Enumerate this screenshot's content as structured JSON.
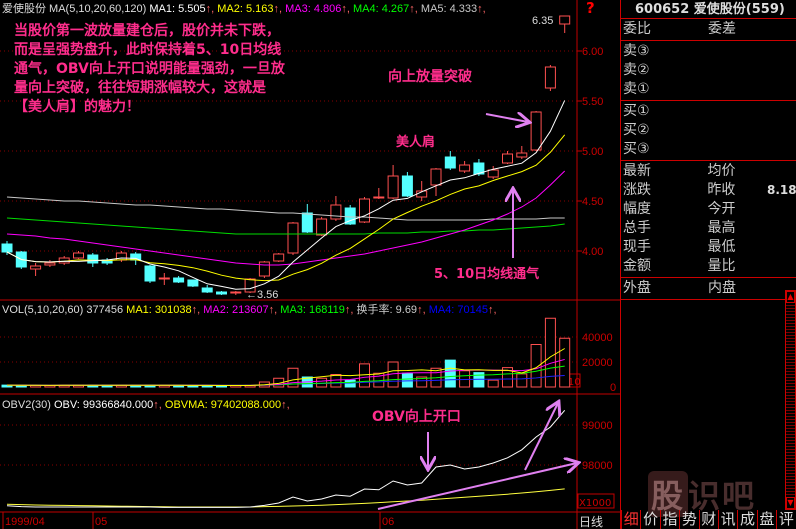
{
  "chart_data": {
    "type": "candlestick",
    "stock_name": "爱使股份",
    "price_panel": {
      "legend": {
        "label": "MA(5,10,20,60,120)",
        "items": [
          {
            "name": "MA1",
            "value": "5.505",
            "color": "#ffffff"
          },
          {
            "name": "MA2",
            "value": "5.163",
            "color": "#ffff00"
          },
          {
            "name": "MA3",
            "value": "4.806",
            "color": "#ff00ff"
          },
          {
            "name": "MA4",
            "value": "4.267",
            "color": "#00ff00"
          },
          {
            "name": "MA5",
            "value": "4.333",
            "color": "#c8c8c8"
          }
        ]
      },
      "y_ticks": [
        "6.00",
        "5.50",
        "5.00",
        "4.50",
        "4.00"
      ],
      "ylim": [
        3.5,
        6.5
      ],
      "high_label": "6.35",
      "low_label": "3.56",
      "candles": [
        [
          4.07,
          3.99,
          4.1,
          3.96
        ],
        [
          3.99,
          3.84,
          4.0,
          3.82
        ],
        [
          3.82,
          3.85,
          3.88,
          3.75
        ],
        [
          3.86,
          3.88,
          3.91,
          3.84
        ],
        [
          3.88,
          3.93,
          3.95,
          3.86
        ],
        [
          3.93,
          3.98,
          4.0,
          3.92
        ],
        [
          3.96,
          3.88,
          3.98,
          3.84
        ],
        [
          3.91,
          3.88,
          3.93,
          3.86
        ],
        [
          3.91,
          3.98,
          4.0,
          3.89
        ],
        [
          3.97,
          3.91,
          3.99,
          3.86
        ],
        [
          3.85,
          3.7,
          3.86,
          3.68
        ],
        [
          3.73,
          3.73,
          3.78,
          3.66
        ],
        [
          3.73,
          3.69,
          3.75,
          3.68
        ],
        [
          3.71,
          3.65,
          3.71,
          3.64
        ],
        [
          3.63,
          3.59,
          3.66,
          3.58
        ],
        [
          3.59,
          3.57,
          3.6,
          3.56
        ],
        [
          3.58,
          3.59,
          3.6,
          3.56
        ],
        [
          3.59,
          3.72,
          3.73,
          3.58
        ],
        [
          3.75,
          3.89,
          3.9,
          3.73
        ],
        [
          3.9,
          3.97,
          3.98,
          3.89
        ],
        [
          3.98,
          4.28,
          4.29,
          3.96
        ],
        [
          4.38,
          4.19,
          4.47,
          4.18
        ],
        [
          4.16,
          4.32,
          4.34,
          4.15
        ],
        [
          4.32,
          4.46,
          4.55,
          4.3
        ],
        [
          4.43,
          4.27,
          4.46,
          4.26
        ],
        [
          4.29,
          4.52,
          4.54,
          4.28
        ],
        [
          4.53,
          4.54,
          4.63,
          4.52
        ],
        [
          4.53,
          4.75,
          4.86,
          4.52
        ],
        [
          4.75,
          4.55,
          4.79,
          4.54
        ],
        [
          4.54,
          4.6,
          4.7,
          4.5
        ],
        [
          4.66,
          4.82,
          4.83,
          4.55
        ],
        [
          4.94,
          4.83,
          5.0,
          4.81
        ],
        [
          4.8,
          4.86,
          4.9,
          4.78
        ],
        [
          4.88,
          4.77,
          4.92,
          4.75
        ],
        [
          4.74,
          4.81,
          4.85,
          4.72
        ],
        [
          4.88,
          4.97,
          5.0,
          4.87
        ],
        [
          4.94,
          4.98,
          5.05,
          4.92
        ],
        [
          5.01,
          5.39,
          5.4,
          5.0
        ],
        [
          5.63,
          5.84,
          5.86,
          5.6
        ],
        [
          6.27,
          6.35,
          6.35,
          6.18
        ]
      ],
      "ma20": [
        4.17,
        4.16,
        4.15,
        4.13,
        4.12,
        4.1,
        4.08,
        4.06,
        4.04,
        4.02,
        4.0,
        3.98,
        3.96,
        3.94,
        3.92,
        3.9,
        3.88,
        3.87,
        3.86,
        3.86,
        3.87,
        3.89,
        3.91,
        3.93,
        3.95,
        3.97,
        4.0,
        4.03,
        4.06,
        4.09,
        4.13,
        4.17,
        4.21,
        4.26,
        4.31,
        4.37,
        4.44,
        4.53,
        4.66,
        4.8
      ],
      "ma60": [
        4.33,
        4.32,
        4.31,
        4.3,
        4.29,
        4.28,
        4.27,
        4.26,
        4.25,
        4.24,
        4.23,
        4.22,
        4.21,
        4.2,
        4.19,
        4.18,
        4.17,
        4.17,
        4.17,
        4.17,
        4.17,
        4.17,
        4.17,
        4.17,
        4.17,
        4.17,
        4.18,
        4.18,
        4.18,
        4.19,
        4.19,
        4.2,
        4.2,
        4.21,
        4.21,
        4.22,
        4.23,
        4.24,
        4.25,
        4.27
      ],
      "ma120": [
        4.54,
        4.53,
        4.52,
        4.51,
        4.5,
        4.5,
        4.49,
        4.48,
        4.47,
        4.46,
        4.46,
        4.45,
        4.44,
        4.43,
        4.42,
        4.42,
        4.41,
        4.4,
        4.39,
        4.38,
        4.38,
        4.37,
        4.36,
        4.35,
        4.34,
        4.34,
        4.33,
        4.32,
        4.31,
        4.31,
        4.31,
        4.31,
        4.31,
        4.31,
        4.32,
        4.32,
        4.32,
        4.32,
        4.33,
        4.33
      ]
    },
    "volume_panel": {
      "legend": {
        "label": "VOL(5,10,20,60)",
        "value": "377456",
        "items": [
          {
            "name": "MA1",
            "value": "301038",
            "color": "#ffff00"
          },
          {
            "name": "MA2",
            "value": "213607",
            "color": "#ff00ff"
          },
          {
            "name": "MA3",
            "value": "168119",
            "color": "#00ff00"
          },
          {
            "name": "换手率",
            "value": "9.69",
            "color": "#cccccc"
          },
          {
            "name": "MA4",
            "value": "70145",
            "color": "#0000ff"
          }
        ]
      },
      "y_ticks": [
        "40000",
        "20000",
        "0"
      ],
      "unit": "X10",
      "values": [
        1500,
        1400,
        1200,
        1300,
        1400,
        1500,
        1500,
        1300,
        1400,
        1300,
        1500,
        1400,
        1300,
        1200,
        1200,
        1100,
        1200,
        1300,
        4000,
        7000,
        15000,
        8000,
        7000,
        10000,
        5500,
        18500,
        11000,
        20000,
        11000,
        8000,
        15000,
        21500,
        13000,
        11500,
        5500,
        15500,
        10500,
        34000,
        55000,
        39000
      ]
    },
    "obv_panel": {
      "legend": {
        "label": "OBV2(30)",
        "items": [
          {
            "name": "OBV",
            "value": "99366840.000",
            "color": "#ffffff"
          },
          {
            "name": "OBVMA",
            "value": "97402088.000",
            "color": "#ffff00"
          }
        ]
      },
      "y_ticks": [
        "99000",
        "98000"
      ],
      "unit": "X1000",
      "obv": [
        96980,
        96960,
        96950,
        96950,
        96950,
        96950,
        96950,
        96950,
        96950,
        96950,
        96950,
        96940,
        96940,
        96940,
        96940,
        96940,
        96940,
        96950,
        96990,
        97050,
        97200,
        97100,
        97150,
        97250,
        97220,
        97400,
        97380,
        97600,
        97500,
        97550,
        97950,
        98000,
        97900,
        97950,
        98050,
        98180,
        98380,
        98700,
        98950,
        99367
      ],
      "obvma": [
        97020,
        97010,
        97000,
        96995,
        96990,
        96985,
        96980,
        96975,
        96970,
        96965,
        96960,
        96955,
        96950,
        96950,
        96950,
        96950,
        96950,
        96950,
        96960,
        96965,
        96975,
        96985,
        96995,
        97010,
        97025,
        97040,
        97060,
        97080,
        97100,
        97120,
        97145,
        97170,
        97195,
        97220,
        97245,
        97270,
        97300,
        97330,
        97365,
        97402
      ]
    },
    "x_ticks": [
      "1999/04",
      "05",
      "06"
    ],
    "period": "日线"
  },
  "annotations": {
    "main_text": "当股价第一波放量建仓后，股价并未下跌，\n而是呈强势盘升，此时保持着5、10日均线\n通气，OBV向上开口说明能量强劲，一旦放\n量向上突破，往往短期涨幅较大，这就是\n【美人肩】的魅力！",
    "breakout": "向上放量突破",
    "shoulder": "美人肩",
    "ma_gap": "5、10日均线通气",
    "obv_open": "OBV向上开口"
  },
  "side_panel": {
    "title": "600652 爱使股份(559)",
    "wei": [
      "委比",
      "委差"
    ],
    "sell": [
      "卖③",
      "卖②",
      "卖①"
    ],
    "buy": [
      "买①",
      "买②",
      "买③"
    ],
    "quote": [
      [
        "最新",
        "均价",
        ""
      ],
      [
        "涨跌",
        "昨收",
        "8.18"
      ],
      [
        "幅度",
        "今开",
        ""
      ],
      [
        "总手",
        "最高",
        ""
      ],
      [
        "现手",
        "最低",
        ""
      ],
      [
        "金额",
        "量比",
        ""
      ]
    ],
    "outer": [
      "外盘",
      "内盘"
    ],
    "tabs": [
      "细",
      "价",
      "指",
      "势",
      "财",
      "讯",
      "成",
      "盘",
      "评"
    ],
    "watermark": "股识吧"
  },
  "colors": {
    "up": "#ff5050",
    "down": "#54ffff",
    "axis": "#c00000",
    "annotation": "#ff2d8c",
    "arrow": "#e080f0"
  }
}
